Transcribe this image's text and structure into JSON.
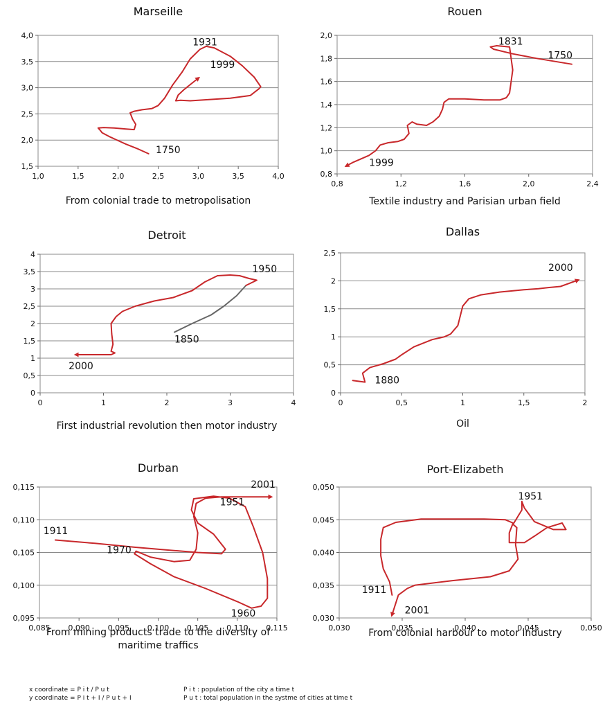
{
  "footnotes": [
    "x coordinate = P i t / P u t",
    "y coordinate = P i t + I / P u t + I",
    "P i t : population of the city a time t",
    "P u t : total population in the systme of cities at time t"
  ],
  "chart_data": [
    {
      "type": "line",
      "title": "Marseille",
      "xlabel": [
        "From colonial trade to metropolisation"
      ],
      "xlim": [
        1.0,
        4.0
      ],
      "ylim": [
        1.5,
        4.0
      ],
      "xticks": [
        "1,0",
        "1,5",
        "2,0",
        "2,5",
        "3,0",
        "3,5",
        "4,0"
      ],
      "yticks": [
        "1,5",
        "2,0",
        "2,5",
        "3,0",
        "3,5",
        "4,0"
      ],
      "grid": true,
      "series": [
        {
          "color": "#c8282b",
          "arrow": true,
          "x": [
            2.38,
            2.25,
            2.1,
            2.0,
            1.9,
            1.8,
            1.78,
            1.75,
            1.82,
            1.95,
            2.1,
            2.2,
            2.22,
            2.18,
            2.15,
            2.2,
            2.3,
            2.42,
            2.5,
            2.58,
            2.68,
            2.8,
            2.9,
            3.02,
            3.1,
            3.2,
            3.4,
            3.55,
            3.7,
            3.78,
            3.76,
            3.65,
            3.4,
            3.1,
            2.9,
            2.78,
            2.72,
            2.75,
            2.82,
            2.9,
            3.0
          ],
          "y": [
            1.74,
            1.83,
            1.92,
            1.99,
            2.06,
            2.14,
            2.18,
            2.23,
            2.24,
            2.23,
            2.21,
            2.2,
            2.3,
            2.4,
            2.52,
            2.55,
            2.58,
            2.6,
            2.66,
            2.8,
            3.05,
            3.3,
            3.55,
            3.73,
            3.79,
            3.76,
            3.6,
            3.42,
            3.2,
            3.02,
            2.98,
            2.85,
            2.8,
            2.77,
            2.75,
            2.76,
            2.75,
            2.86,
            2.96,
            3.06,
            3.18
          ]
        }
      ],
      "annotations": [
        {
          "text": "1931",
          "x": 2.93,
          "y": 3.81
        },
        {
          "text": "1999",
          "x": 3.15,
          "y": 3.38
        },
        {
          "text": "1750",
          "x": 2.47,
          "y": 1.75
        }
      ]
    },
    {
      "type": "line",
      "title": "Rouen",
      "xlabel": [
        "Textile industry and Parisian urban field"
      ],
      "xlim": [
        0.8,
        2.4
      ],
      "ylim": [
        0.8,
        2.0
      ],
      "xticks": [
        "0,8",
        "1,2",
        "1,6",
        "2,0",
        "2,4"
      ],
      "yticks": [
        "0,8",
        "1,0",
        "1,2",
        "1,4",
        "1,6",
        "1,8",
        "2,0"
      ],
      "grid": true,
      "series": [
        {
          "color": "#c8282b",
          "arrow": true,
          "x": [
            2.27,
            2.05,
            1.9,
            1.78,
            1.76,
            1.8,
            1.88,
            1.9,
            1.88,
            1.86,
            1.82,
            1.72,
            1.6,
            1.5,
            1.47,
            1.46,
            1.44,
            1.4,
            1.36,
            1.3,
            1.27,
            1.24,
            1.25,
            1.22,
            1.18,
            1.12,
            1.07,
            1.04,
            1.0,
            0.95,
            0.9,
            0.86
          ],
          "y": [
            1.75,
            1.8,
            1.84,
            1.88,
            1.9,
            1.91,
            1.9,
            1.7,
            1.5,
            1.46,
            1.44,
            1.44,
            1.45,
            1.45,
            1.42,
            1.36,
            1.3,
            1.25,
            1.22,
            1.23,
            1.25,
            1.22,
            1.15,
            1.1,
            1.08,
            1.07,
            1.05,
            1.0,
            0.96,
            0.93,
            0.9,
            0.87
          ]
        }
      ],
      "annotations": [
        {
          "text": "1831",
          "x": 1.81,
          "y": 1.92
        },
        {
          "text": "1750",
          "x": 2.12,
          "y": 1.8
        },
        {
          "text": "1999",
          "x": 1.0,
          "y": 0.87
        }
      ]
    },
    {
      "type": "line",
      "title": "Detroit",
      "xlabel": [
        "First industrial revolution then motor industry"
      ],
      "xlim": [
        0,
        4
      ],
      "ylim": [
        0,
        4
      ],
      "xticks": [
        "0",
        "1",
        "2",
        "3",
        "4"
      ],
      "yticks": [
        "0",
        "0,5",
        "1",
        "1,5",
        "2",
        "2,5",
        "3",
        "3,5",
        "4"
      ],
      "grid": true,
      "series": [
        {
          "color": "#666666",
          "arrow": false,
          "x": [
            2.12,
            2.4,
            2.7,
            2.9,
            3.1,
            3.25
          ],
          "y": [
            1.75,
            2.0,
            2.25,
            2.5,
            2.8,
            3.1
          ]
        },
        {
          "color": "#c8282b",
          "arrow": true,
          "x": [
            3.25,
            3.42,
            3.3,
            3.15,
            3.0,
            2.8,
            2.6,
            2.4,
            2.1,
            1.8,
            1.5,
            1.3,
            1.2,
            1.12,
            1.13,
            1.15,
            1.12,
            1.18,
            1.12,
            1.0,
            0.8,
            0.57
          ],
          "y": [
            3.1,
            3.25,
            3.3,
            3.38,
            3.4,
            3.38,
            3.2,
            2.95,
            2.75,
            2.65,
            2.5,
            2.35,
            2.2,
            2.0,
            1.7,
            1.4,
            1.2,
            1.15,
            1.1,
            1.1,
            1.1,
            1.1
          ]
        }
      ],
      "annotations": [
        {
          "text": "1950",
          "x": 3.35,
          "y": 3.48
        },
        {
          "text": "1850",
          "x": 2.12,
          "y": 1.45
        },
        {
          "text": "2000",
          "x": 0.45,
          "y": 0.68
        }
      ]
    },
    {
      "type": "line",
      "title": "Dallas",
      "xlabel": [
        "Oil"
      ],
      "xlim": [
        0,
        2
      ],
      "ylim": [
        0,
        2.5
      ],
      "xticks": [
        "0",
        "0,5",
        "1",
        "1,5",
        "2"
      ],
      "yticks": [
        "0",
        "0,5",
        "1",
        "1,5",
        "2",
        "2,5"
      ],
      "grid": true,
      "series": [
        {
          "color": "#c8282b",
          "arrow": true,
          "x": [
            0.1,
            0.2,
            0.18,
            0.24,
            0.35,
            0.45,
            0.5,
            0.6,
            0.75,
            0.85,
            0.9,
            0.96,
            1.0,
            1.05,
            1.15,
            1.3,
            1.5,
            1.62,
            1.7,
            1.8,
            1.94
          ],
          "y": [
            0.22,
            0.19,
            0.35,
            0.45,
            0.52,
            0.6,
            0.68,
            0.82,
            0.95,
            1.0,
            1.05,
            1.2,
            1.55,
            1.68,
            1.75,
            1.8,
            1.84,
            1.86,
            1.88,
            1.9,
            2.01
          ]
        }
      ],
      "annotations": [
        {
          "text": "2000",
          "x": 1.7,
          "y": 2.18
        },
        {
          "text": "1880",
          "x": 0.28,
          "y": 0.17
        }
      ]
    },
    {
      "type": "line",
      "title": "Durban",
      "xlabel": [
        "From mining products trade to the diversity of",
        "maritime traffics"
      ],
      "xlim": [
        0.085,
        0.115
      ],
      "ylim": [
        0.095,
        0.115
      ],
      "xticks": [
        "0,085",
        "0,090",
        "0,095",
        "0,100",
        "0,105",
        "0,110",
        "0,115"
      ],
      "yticks": [
        "0,095",
        "0,100",
        "0,105",
        "0,110",
        "0,115"
      ],
      "grid": true,
      "series": [
        {
          "color": "#c8282b",
          "arrow": true,
          "x": [
            0.087,
            0.092,
            0.097,
            0.102,
            0.105,
            0.108,
            0.1085,
            0.107,
            0.105,
            0.1042,
            0.1045,
            0.107,
            0.109,
            0.111,
            0.112,
            0.1132,
            0.1138,
            0.1138,
            0.113,
            0.1118,
            0.11,
            0.106,
            0.102,
            0.099,
            0.097,
            0.0972,
            0.099,
            0.102,
            0.104,
            0.1048,
            0.105,
            0.1045,
            0.1048,
            0.106,
            0.108,
            0.111,
            0.1142
          ],
          "y": [
            0.1069,
            0.1064,
            0.1058,
            0.1053,
            0.105,
            0.1048,
            0.1055,
            0.1078,
            0.1095,
            0.1115,
            0.1132,
            0.1136,
            0.1133,
            0.112,
            0.109,
            0.105,
            0.101,
            0.098,
            0.0968,
            0.0965,
            0.0975,
            0.0995,
            0.1013,
            0.1033,
            0.1048,
            0.1052,
            0.1043,
            0.1036,
            0.1038,
            0.1055,
            0.108,
            0.1105,
            0.1125,
            0.1133,
            0.1135,
            0.1135,
            0.1135
          ]
        }
      ],
      "annotations": [
        {
          "text": "1911",
          "x": 0.0855,
          "y": 0.1078
        },
        {
          "text": "1970",
          "x": 0.0935,
          "y": 0.1049
        },
        {
          "text": "1951",
          "x": 0.1078,
          "y": 0.1122
        },
        {
          "text": "2001",
          "x": 0.1117,
          "y": 0.1149
        },
        {
          "text": "1960",
          "x": 0.1092,
          "y": 0.0952
        }
      ]
    },
    {
      "type": "line",
      "title": "Port-Elizabeth",
      "xlabel": [
        "From colonial harbour to motor industry"
      ],
      "xlim": [
        0.03,
        0.05
      ],
      "ylim": [
        0.03,
        0.05
      ],
      "xticks": [
        "0,030",
        "0,035",
        "0,040",
        "0,045",
        "0,050"
      ],
      "yticks": [
        "0,030",
        "0,035",
        "0,040",
        "0,045",
        "0,050"
      ],
      "grid": true,
      "series": [
        {
          "color": "#c8282b",
          "arrow": true,
          "x": [
            0.0342,
            0.034,
            0.0335,
            0.0333,
            0.0333,
            0.0335,
            0.0345,
            0.0365,
            0.039,
            0.0415,
            0.0432,
            0.0438,
            0.0435,
            0.0435,
            0.0447,
            0.0455,
            0.0465,
            0.0477,
            0.048,
            0.047,
            0.0455,
            0.0447,
            0.0445,
            0.0445,
            0.0438,
            0.0441,
            0.044,
            0.0442,
            0.0435,
            0.042,
            0.039,
            0.036,
            0.0354,
            0.0347,
            0.0342
          ],
          "y": [
            0.0335,
            0.0355,
            0.0375,
            0.0395,
            0.042,
            0.0438,
            0.0446,
            0.0451,
            0.0451,
            0.0451,
            0.045,
            0.0445,
            0.043,
            0.0415,
            0.0415,
            0.0425,
            0.0438,
            0.0445,
            0.0435,
            0.0435,
            0.0447,
            0.0468,
            0.0478,
            0.0465,
            0.0443,
            0.0438,
            0.0412,
            0.039,
            0.0372,
            0.0363,
            0.0357,
            0.035,
            0.0345,
            0.0335,
            0.0305
          ]
        }
      ],
      "annotations": [
        {
          "text": "1951",
          "x": 0.0442,
          "y": 0.0481
        },
        {
          "text": "1911",
          "x": 0.0318,
          "y": 0.0338
        },
        {
          "text": "2001",
          "x": 0.0352,
          "y": 0.0307
        }
      ]
    }
  ]
}
